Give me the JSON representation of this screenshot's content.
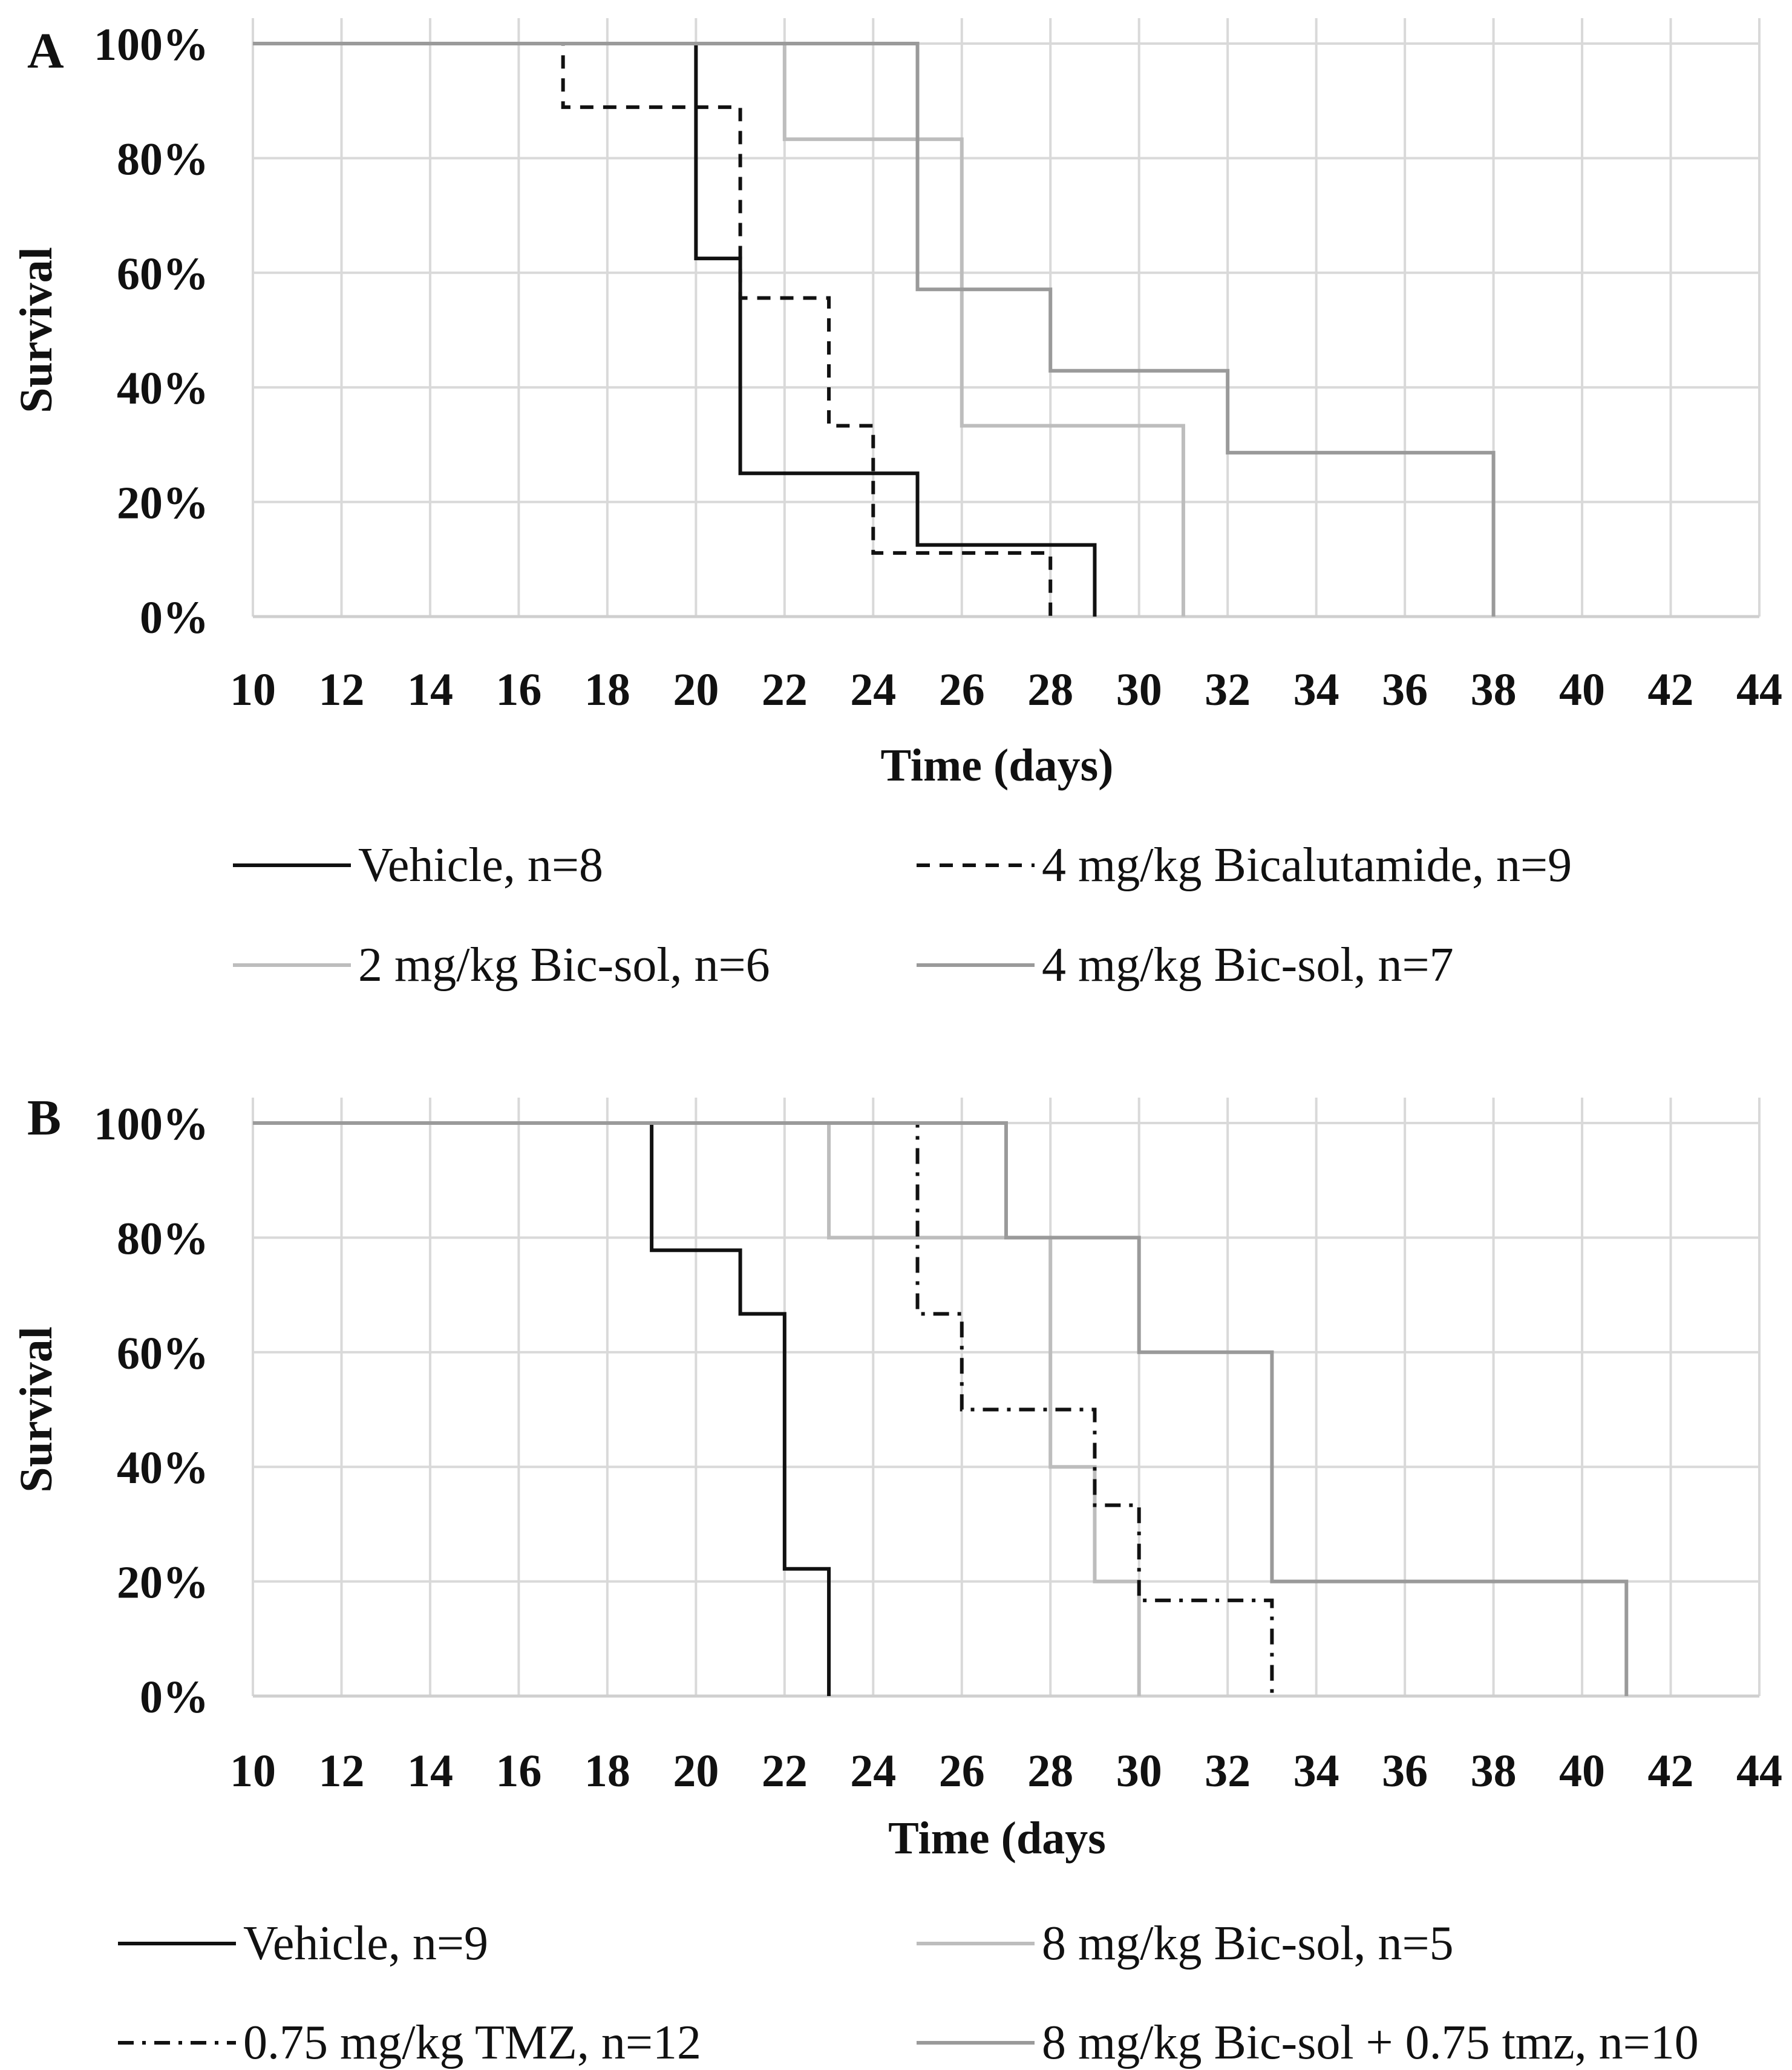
{
  "chart_data": [
    {
      "panel_label": "A",
      "type": "line",
      "subtype": "kaplan-meier-step",
      "xlabel": "Time (days)",
      "ylabel": "Survival",
      "xlim": [
        10,
        44
      ],
      "ylim": [
        0,
        100
      ],
      "x_ticks": [
        10,
        12,
        14,
        16,
        18,
        20,
        22,
        24,
        26,
        28,
        30,
        32,
        34,
        36,
        38,
        40,
        42,
        44
      ],
      "y_ticks": [
        "0%",
        "20%",
        "40%",
        "60%",
        "80%",
        "100%"
      ],
      "grid": true,
      "series": [
        {
          "name": "Vehicle, n=8",
          "color": "#111111",
          "dash": "solid",
          "steps": [
            [
              10,
              100
            ],
            [
              20,
              62.5
            ],
            [
              21,
              25
            ],
            [
              25,
              12.5
            ],
            [
              29,
              0
            ]
          ]
        },
        {
          "name": "4 mg/kg Bicalutamide, n=9",
          "color": "#111111",
          "dash": "dashed",
          "steps": [
            [
              10,
              100
            ],
            [
              17,
              88.9
            ],
            [
              21,
              55.6
            ],
            [
              23,
              33.3
            ],
            [
              24,
              11.1
            ],
            [
              28,
              0
            ]
          ]
        },
        {
          "name": "2 mg/kg Bic-sol, n=6",
          "color": "#bdbdbd",
          "dash": "solid",
          "steps": [
            [
              10,
              100
            ],
            [
              22,
              83.3
            ],
            [
              26,
              33.3
            ],
            [
              31,
              0
            ]
          ]
        },
        {
          "name": "4 mg/kg Bic-sol, n=7",
          "color": "#9a9a9a",
          "dash": "solid",
          "steps": [
            [
              10,
              100
            ],
            [
              25,
              57.1
            ],
            [
              28,
              42.9
            ],
            [
              32,
              28.6
            ],
            [
              38,
              0
            ]
          ]
        }
      ]
    },
    {
      "panel_label": "B",
      "type": "line",
      "subtype": "kaplan-meier-step",
      "xlabel": "Time (days",
      "ylabel": "Survival",
      "xlim": [
        10,
        44
      ],
      "ylim": [
        0,
        100
      ],
      "x_ticks": [
        10,
        12,
        14,
        16,
        18,
        20,
        22,
        24,
        26,
        28,
        30,
        32,
        34,
        36,
        38,
        40,
        42,
        44
      ],
      "y_ticks": [
        "0%",
        "20%",
        "40%",
        "60%",
        "80%",
        "100%"
      ],
      "grid": true,
      "series": [
        {
          "name": "Vehicle, n=9",
          "color": "#111111",
          "dash": "solid",
          "steps": [
            [
              10,
              100
            ],
            [
              19,
              77.8
            ],
            [
              21,
              66.7
            ],
            [
              22,
              22.2
            ],
            [
              23,
              0
            ]
          ]
        },
        {
          "name": "8 mg/kg Bic-sol, n=5",
          "color": "#bdbdbd",
          "dash": "solid",
          "steps": [
            [
              10,
              100
            ],
            [
              23,
              80
            ],
            [
              28,
              40
            ],
            [
              29,
              20
            ],
            [
              30,
              0
            ]
          ]
        },
        {
          "name": "0.75 mg/kg TMZ, n=12",
          "color": "#111111",
          "dash": "dashdot",
          "steps": [
            [
              10,
              100
            ],
            [
              25,
              66.7
            ],
            [
              26,
              50
            ],
            [
              29,
              33.3
            ],
            [
              30,
              16.7
            ],
            [
              33,
              0
            ]
          ]
        },
        {
          "name": "8 mg/kg Bic-sol + 0.75 tmz, n=10",
          "color": "#9a9a9a",
          "dash": "solid",
          "steps": [
            [
              10,
              100
            ],
            [
              27,
              80
            ],
            [
              30,
              60
            ],
            [
              33,
              20
            ],
            [
              41,
              0
            ]
          ]
        }
      ]
    }
  ]
}
